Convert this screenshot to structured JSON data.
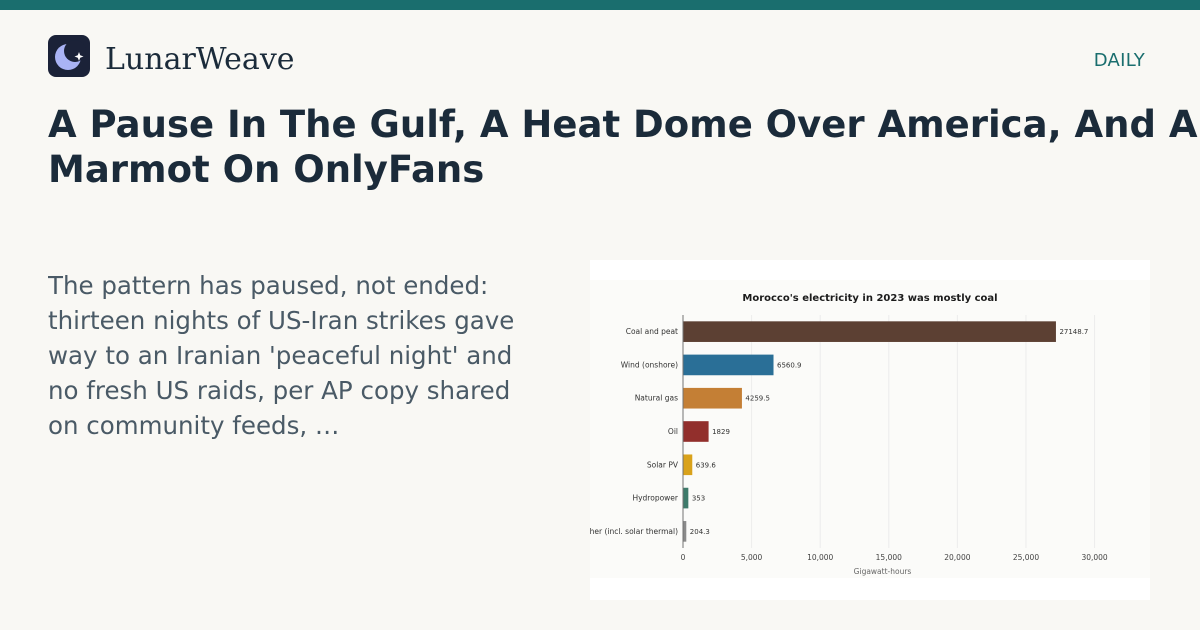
{
  "brand": {
    "name": "LunarWeave",
    "icon": "crescent-moon-icon",
    "accent_color": "#1a6e6e",
    "logo_bg": "#1b2238"
  },
  "section_label": "DAILY",
  "headline": {
    "line1": "A Pause In The Gulf, A Heat Dome Over America, And A",
    "line2": "Marmot On OnlyFans"
  },
  "excerpt": "The pattern has paused, not ended: thirteen nights of US-Iran strikes gave way to an Iranian 'peaceful night' and no fresh US raids, per AP copy shared on community feeds, …",
  "chart_data": {
    "type": "bar",
    "orientation": "horizontal",
    "title": "Morocco's electricity in 2023 was mostly coal",
    "xlabel": "Gigawatt-hours",
    "ylabel": "",
    "xlim": [
      0,
      32000
    ],
    "xticks": [
      0,
      5000,
      10000,
      15000,
      20000,
      25000,
      30000
    ],
    "xtick_labels": [
      "0",
      "5,000",
      "10,000",
      "15,000",
      "20,000",
      "25,000",
      "30,000"
    ],
    "grid": true,
    "categories": [
      "Coal and peat",
      "Wind (onshore)",
      "Natural gas",
      "Oil",
      "Solar PV",
      "Hydropower",
      "Other (incl. solar thermal)"
    ],
    "values": [
      27148.7,
      6560.9,
      4259.5,
      1829,
      639.6,
      353,
      204.3
    ],
    "value_labels": [
      "27148.7",
      "6560.9",
      "4259.5",
      "1829",
      "639.6",
      "353",
      "204.3"
    ],
    "colors": [
      "#5c4033",
      "#2a6f97",
      "#c47f35",
      "#922f2c",
      "#d9a21b",
      "#3d7a6a",
      "#8a8a8a"
    ]
  }
}
